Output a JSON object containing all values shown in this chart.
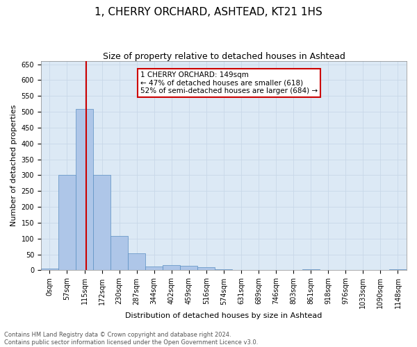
{
  "title": "1, CHERRY ORCHARD, ASHTEAD, KT21 1HS",
  "subtitle": "Size of property relative to detached houses in Ashtead",
  "xlabel": "Distribution of detached houses by size in Ashtead",
  "ylabel": "Number of detached properties",
  "footer_line1": "Contains HM Land Registry data © Crown copyright and database right 2024.",
  "footer_line2": "Contains public sector information licensed under the Open Government Licence v3.0.",
  "bin_labels": [
    "0sqm",
    "57sqm",
    "115sqm",
    "172sqm",
    "230sqm",
    "287sqm",
    "344sqm",
    "402sqm",
    "459sqm",
    "516sqm",
    "574sqm",
    "631sqm",
    "689sqm",
    "746sqm",
    "803sqm",
    "861sqm",
    "918sqm",
    "976sqm",
    "1033sqm",
    "1090sqm",
    "1148sqm"
  ],
  "bar_heights": [
    5,
    300,
    510,
    300,
    108,
    53,
    13,
    16,
    15,
    9,
    4,
    0,
    2,
    0,
    0,
    3,
    0,
    0,
    0,
    0,
    3
  ],
  "bar_color": "#aec6e8",
  "bar_edge_color": "#5a8fc2",
  "vline_color": "#cc0000",
  "annotation_text": "1 CHERRY ORCHARD: 149sqm\n← 47% of detached houses are smaller (618)\n52% of semi-detached houses are larger (684) →",
  "annotation_box_color": "#ffffff",
  "annotation_box_edge_color": "#cc0000",
  "ylim": [
    0,
    660
  ],
  "yticks": [
    0,
    50,
    100,
    150,
    200,
    250,
    300,
    350,
    400,
    450,
    500,
    550,
    600,
    650
  ],
  "grid_color": "#c8d8e8",
  "background_color": "#dce9f5",
  "title_fontsize": 11,
  "subtitle_fontsize": 9,
  "tick_fontsize": 7,
  "ylabel_fontsize": 8,
  "xlabel_fontsize": 8,
  "annotation_fontsize": 7.5,
  "footer_fontsize": 6
}
